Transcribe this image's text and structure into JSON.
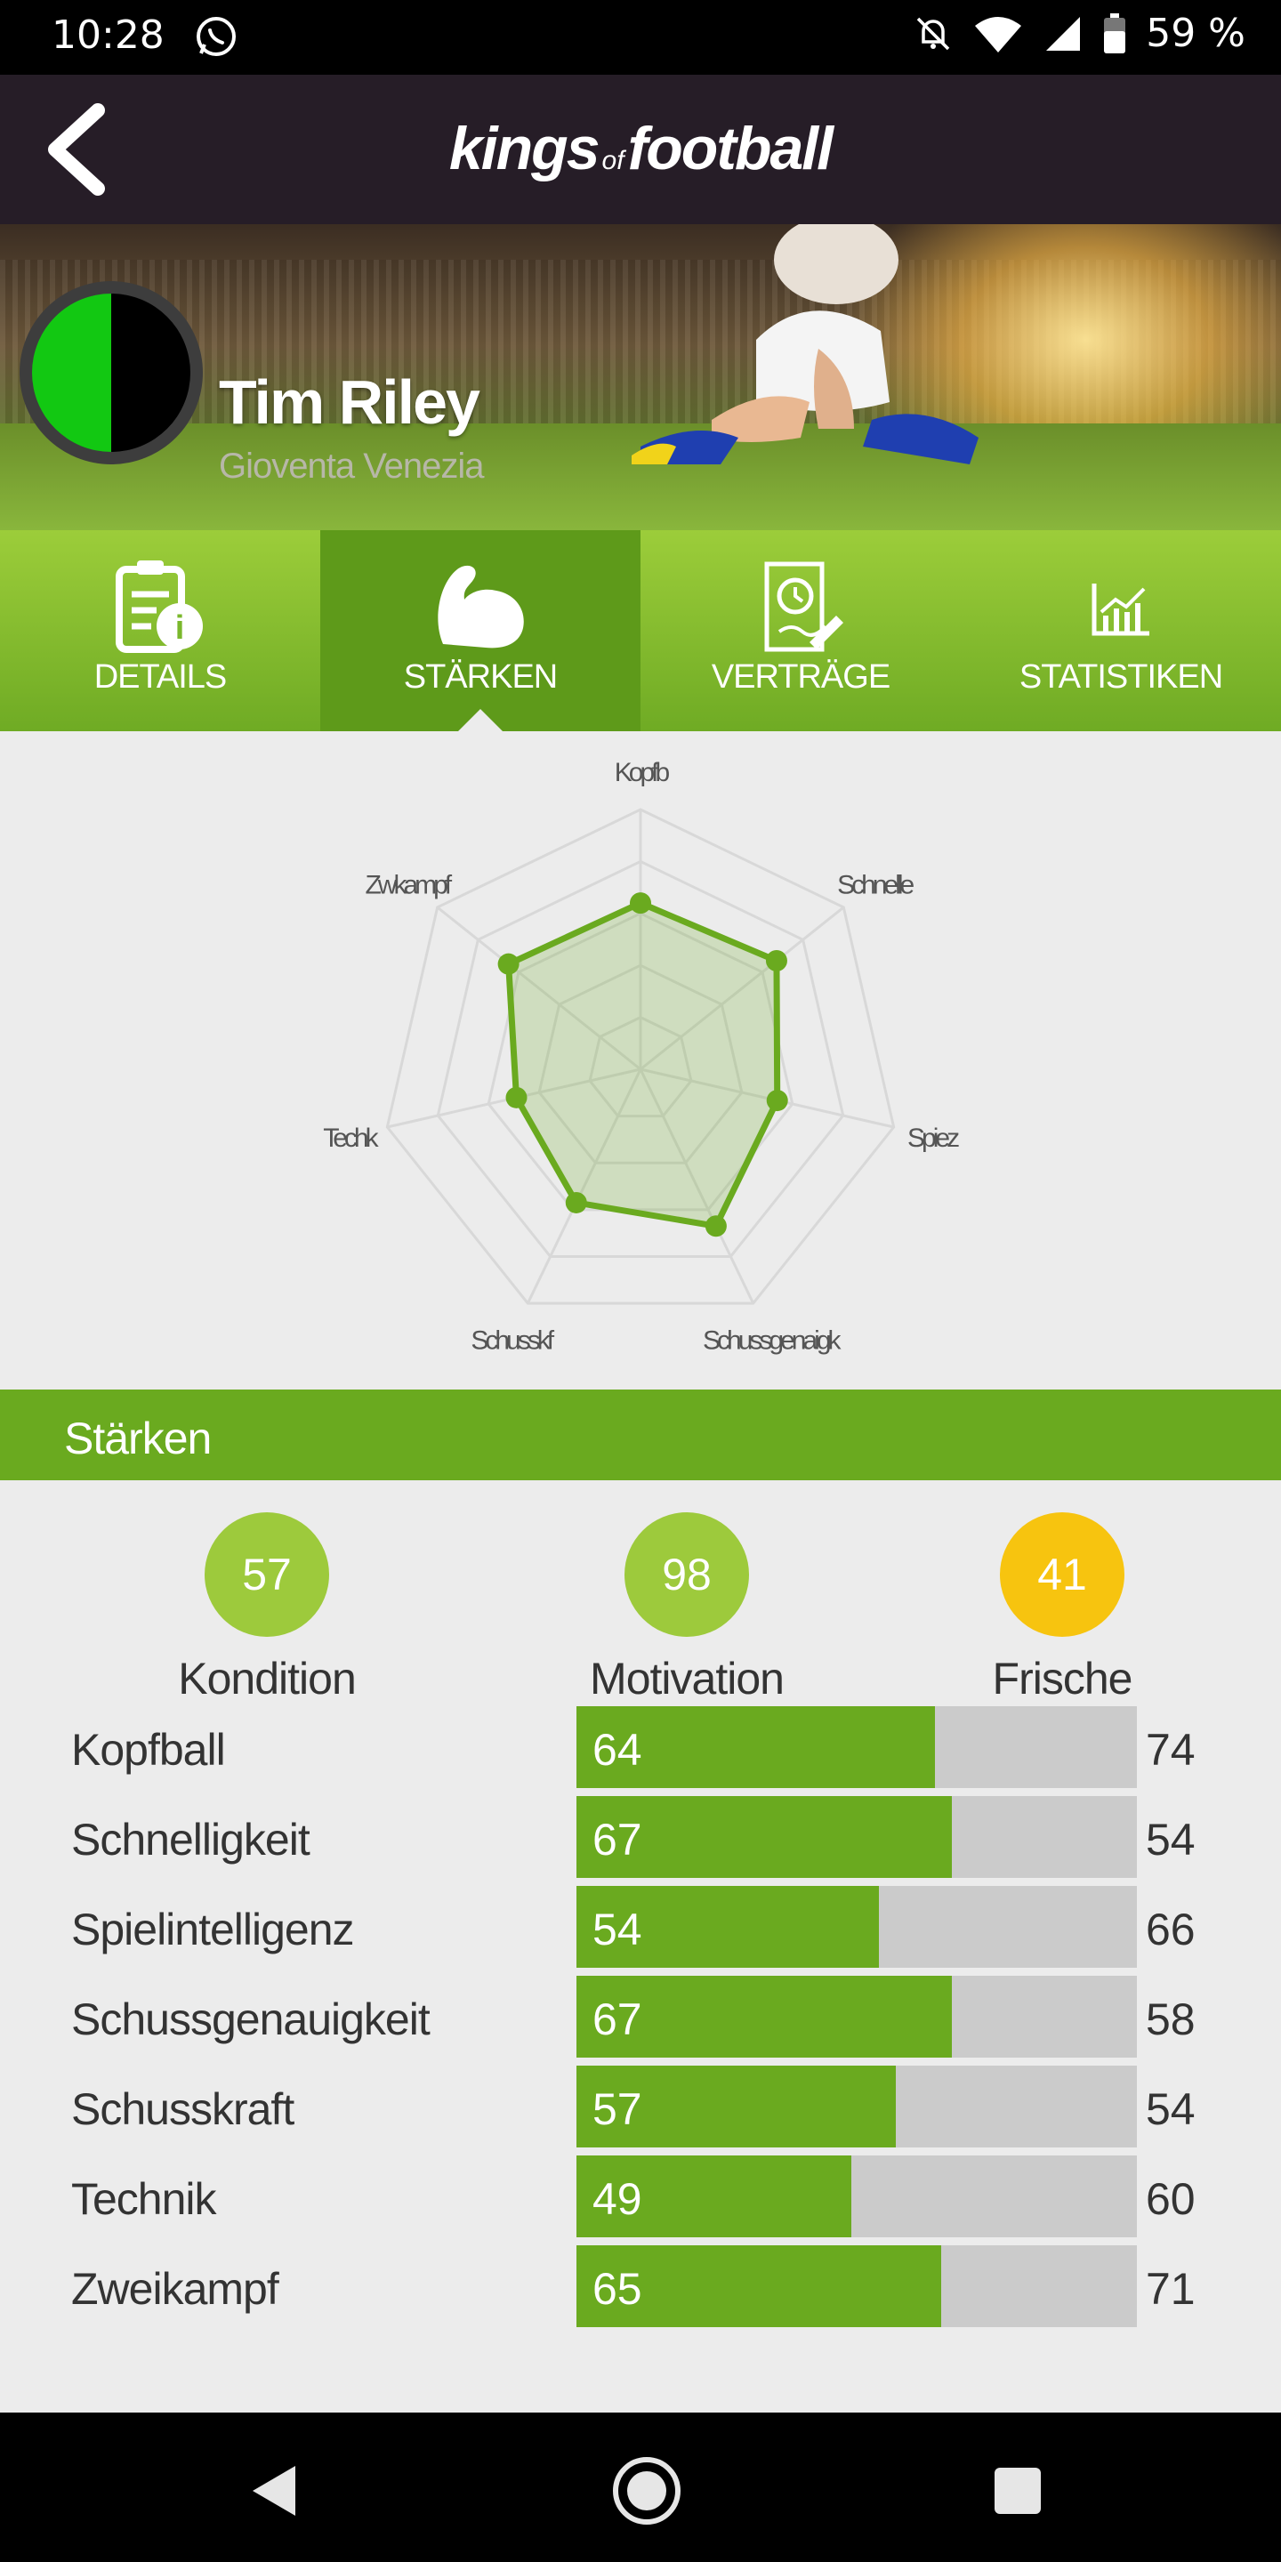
{
  "status_bar": {
    "time": "10:28",
    "battery": "59 %",
    "icons": [
      "whatsapp-icon",
      "bell-off-icon",
      "wifi-icon",
      "signal-icon",
      "battery-icon"
    ]
  },
  "header": {
    "logo_left": "kings",
    "logo_of": "of",
    "logo_right": "football",
    "back_icon": "chevron-left-icon",
    "background": "#261d27"
  },
  "player": {
    "name": "Tim Riley",
    "club": "Gioventa Venezia",
    "badge_colors": [
      "#12c812",
      "#000000"
    ]
  },
  "tabs": [
    {
      "label": "DETAILS",
      "icon": "document-info-icon",
      "active": false
    },
    {
      "label": "STÄRKEN",
      "icon": "flexed-arm-icon",
      "active": true
    },
    {
      "label": "VERTRÄGE",
      "icon": "contract-icon",
      "active": false
    },
    {
      "label": "STATISTIKEN",
      "icon": "bar-chart-icon",
      "active": false
    }
  ],
  "chart_data": {
    "type": "radar",
    "axes": [
      "Kopfball",
      "Schnelligkeit",
      "Spielintelligenz",
      "Schussgenauigkeit",
      "Schusskraft",
      "Technik",
      "Zweikampf"
    ],
    "axis_labels_rendered": [
      "Kopfb",
      "Schnelle",
      "Spiez",
      "Schussgenaigk",
      "Schusskf",
      "Techk",
      "Zwkampf"
    ],
    "values": [
      64,
      67,
      54,
      67,
      57,
      49,
      65
    ],
    "range": [
      0,
      100
    ],
    "rings": 5,
    "grid": true,
    "fill_color": "#6aaa1f"
  },
  "section": {
    "title": "Stärken"
  },
  "stats": [
    {
      "value": "57",
      "label": "Kondition",
      "color": "#9dca3c"
    },
    {
      "value": "98",
      "label": "Motivation",
      "color": "#9dca3c"
    },
    {
      "value": "41",
      "label": "Frische",
      "color": "#f7c40f"
    }
  ],
  "attributes": [
    {
      "name": "Kopfball",
      "value": 64,
      "max": 74
    },
    {
      "name": "Schnelligkeit",
      "value": 67,
      "max": 54
    },
    {
      "name": "Spielintelligenz",
      "value": 54,
      "max": 66
    },
    {
      "name": "Schussgenauigkeit",
      "value": 67,
      "max": 58
    },
    {
      "name": "Schusskraft",
      "value": 57,
      "max": 54
    },
    {
      "name": "Technik",
      "value": 49,
      "max": 60
    },
    {
      "name": "Zweikampf",
      "value": 65,
      "max": 71
    }
  ],
  "attributes_scale_max": 100,
  "nav": {
    "icons": [
      "back-triangle-icon",
      "home-circle-icon",
      "recents-square-icon"
    ]
  }
}
